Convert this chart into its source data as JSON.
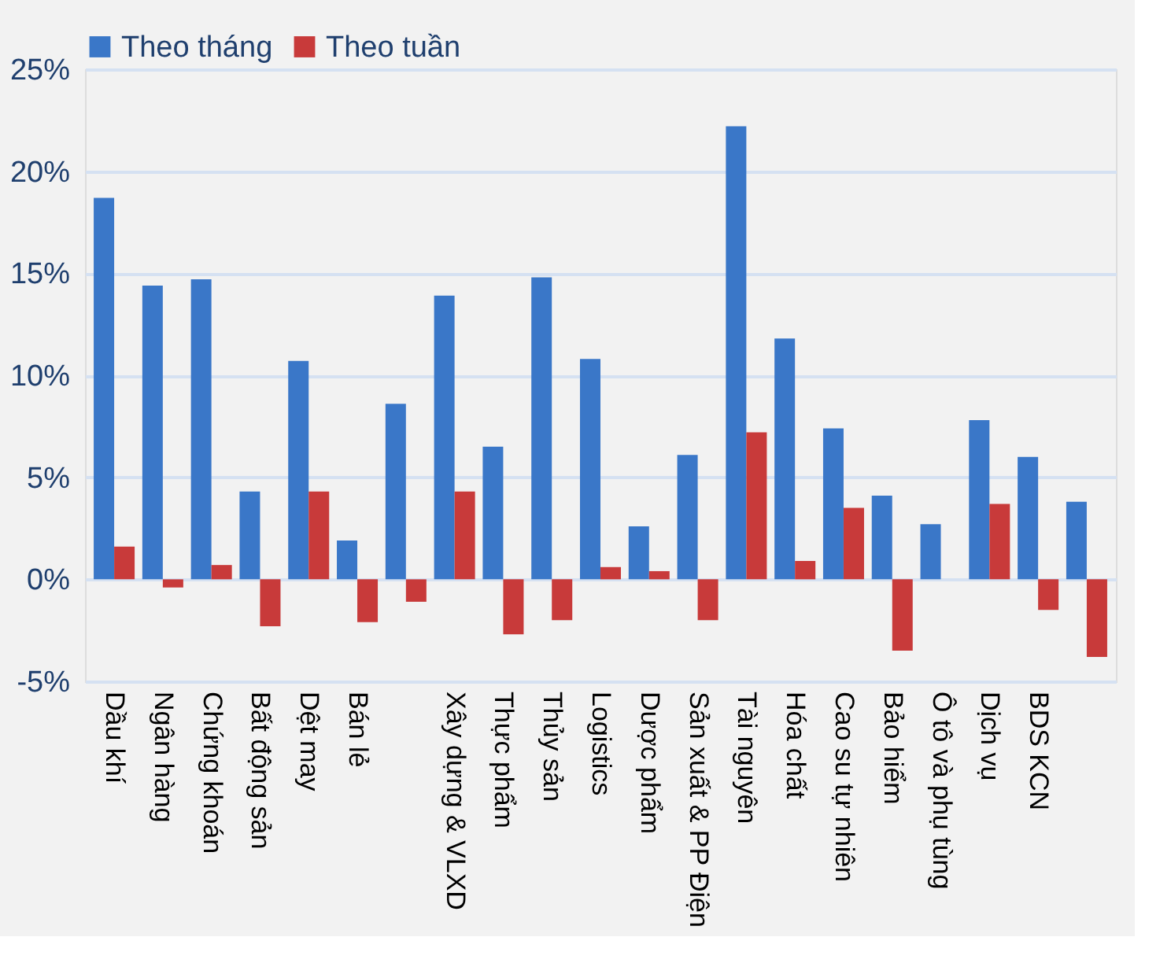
{
  "chart_data": {
    "type": "bar",
    "categories": [
      "Dầu khí",
      "Ngân hàng",
      "Chứng khoán",
      "Bất động sản",
      "Dệt may",
      "Bán lẻ",
      null,
      "Xây dựng & VLXD",
      "Thực phẩm",
      "Thủy sản",
      "Logistics",
      "Dược phẩm",
      "Sản xuất & PP Điện",
      "Tài nguyên",
      "Hóa chất",
      "Cao su tự nhiên",
      "Bảo hiểm",
      "Ô tô và phụ tùng",
      "Dịch vụ",
      "BDS KCN",
      null
    ],
    "series": [
      {
        "name": "Theo tháng",
        "color": "#3a77c8",
        "values": [
          18.7,
          14.4,
          14.7,
          4.3,
          10.7,
          1.9,
          8.6,
          13.9,
          6.5,
          14.8,
          10.8,
          2.6,
          6.1,
          22.2,
          11.8,
          7.4,
          4.1,
          2.7,
          7.8,
          6.0,
          3.8
        ]
      },
      {
        "name": "Theo tuần",
        "color": "#c83a3a",
        "values": [
          1.6,
          -0.4,
          0.7,
          -2.3,
          4.3,
          -2.1,
          -1.1,
          4.3,
          -2.7,
          -2.0,
          0.6,
          0.4,
          -2.0,
          7.2,
          0.9,
          3.5,
          -3.5,
          null,
          3.7,
          -1.5,
          -3.8
        ]
      }
    ],
    "ylim": [
      -5,
      25
    ],
    "yticks": [
      {
        "value": -5,
        "label": "-5%"
      },
      {
        "value": 0,
        "label": "0%"
      },
      {
        "value": 5,
        "label": "5%"
      },
      {
        "value": 10,
        "label": "10%"
      },
      {
        "value": 15,
        "label": "15%"
      },
      {
        "value": 20,
        "label": "20%"
      },
      {
        "value": 25,
        "label": "25%"
      }
    ],
    "grid": "y",
    "legend": "top"
  }
}
